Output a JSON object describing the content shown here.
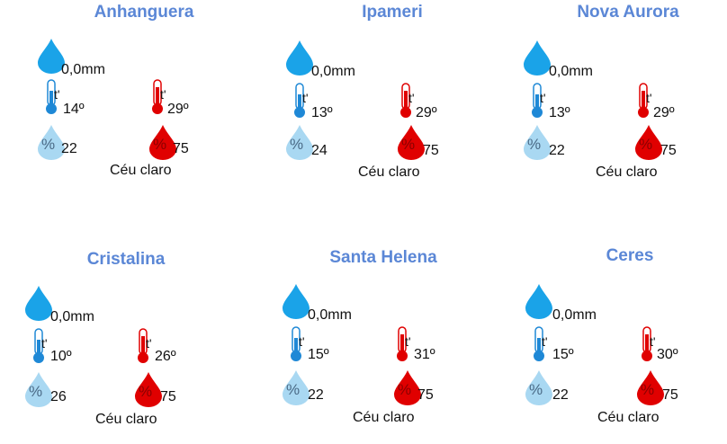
{
  "colors": {
    "title": "#5b87d6",
    "rain": "#1aa3e8",
    "cold": "#1e88d6",
    "hot": "#e00000",
    "humidity_low": "#a9d8f2"
  },
  "icons": {
    "rain": "raindrop-icon",
    "tmin": "thermometer-cold-icon",
    "tmax": "thermometer-hot-icon",
    "hum_min": "humidity-low-icon",
    "hum_max": "humidity-high-icon"
  },
  "thermo_label": "t'",
  "percent_symbol": "%",
  "cities": [
    {
      "name": "Anhanguera",
      "rain": "0,0mm",
      "tmin": "14º",
      "tmax": "29º",
      "hmin": "22",
      "hmax": "75",
      "condition": "Céu claro"
    },
    {
      "name": "Ipameri",
      "rain": "0,0mm",
      "tmin": "13º",
      "tmax": "29º",
      "hmin": "24",
      "hmax": "75",
      "condition": "Céu claro"
    },
    {
      "name": "Nova Aurora",
      "rain": "0,0mm",
      "tmin": "13º",
      "tmax": "29º",
      "hmin": "22",
      "hmax": "75",
      "condition": "Céu claro"
    },
    {
      "name": "Cristalina",
      "rain": "0,0mm",
      "tmin": "10º",
      "tmax": "26º",
      "hmin": "26",
      "hmax": "75",
      "condition": "Céu claro"
    },
    {
      "name": "Santa Helena",
      "rain": "0,0mm",
      "tmin": "15º",
      "tmax": "31º",
      "hmin": "22",
      "hmax": "75",
      "condition": "Céu claro"
    },
    {
      "name": "Ceres",
      "rain": "0,0mm",
      "tmin": "15º",
      "tmax": "30º",
      "hmin": "22",
      "hmax": "75",
      "condition": "Céu claro"
    }
  ]
}
